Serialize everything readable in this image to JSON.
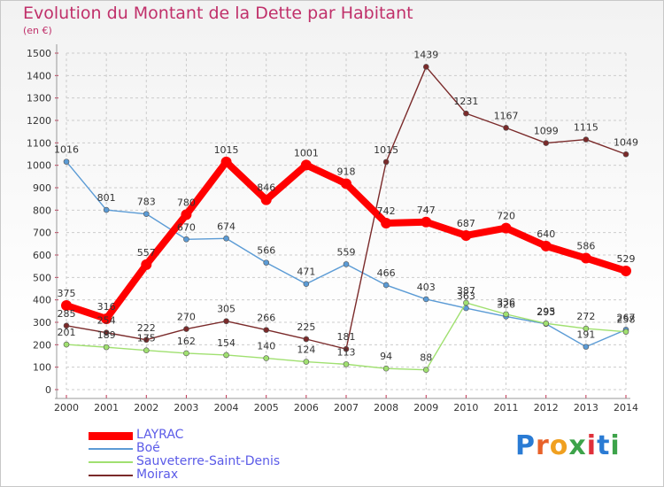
{
  "title": "Evolution du Montant de la Dette par Habitant",
  "subtitle": "(en €)",
  "logo": {
    "text": "Proxiti",
    "letters": [
      "P",
      "r",
      "o",
      "x",
      "i",
      "t",
      "i"
    ],
    "colors": [
      "#2a7bd4",
      "#e8622a",
      "#f0a020",
      "#3da34a",
      "#e0303a",
      "#2a7bd4",
      "#3da34a"
    ]
  },
  "chart_data": {
    "type": "line",
    "title": "Evolution du Montant de la Dette par Habitant",
    "subtitle": "(en €)",
    "xlabel": "",
    "ylabel": "",
    "x": [
      "2000",
      "2001",
      "2002",
      "2003",
      "2004",
      "2005",
      "2006",
      "2007",
      "2008",
      "2009",
      "2010",
      "2011",
      "2012",
      "2013",
      "2014"
    ],
    "ylim": [
      0,
      1500
    ],
    "yticks": [
      0,
      100,
      200,
      300,
      400,
      500,
      600,
      700,
      800,
      900,
      1000,
      1100,
      1200,
      1300,
      1400,
      1500
    ],
    "grid": true,
    "legend_position": "bottom-left",
    "series": [
      {
        "name": "LAYRAC",
        "color": "#ff0000",
        "values": [
          375,
          316,
          557,
          780,
          1015,
          846,
          1001,
          918,
          742,
          747,
          687,
          720,
          640,
          586,
          529
        ]
      },
      {
        "name": "Boé",
        "color": "#5b9bd5",
        "values": [
          1016,
          801,
          783,
          670,
          674,
          566,
          471,
          559,
          466,
          403,
          363,
          326,
          293,
          191,
          267
        ]
      },
      {
        "name": "Sauveterre-Saint-Denis",
        "color": "#a0e070",
        "values": [
          201,
          189,
          175,
          162,
          154,
          140,
          124,
          113,
          94,
          88,
          387,
          336,
          295,
          272,
          258
        ]
      },
      {
        "name": "Moirax",
        "color": "#7a2a2a",
        "values": [
          285,
          254,
          222,
          270,
          305,
          266,
          225,
          181,
          1015,
          1439,
          1231,
          1167,
          1099,
          1115,
          1049
        ]
      }
    ]
  }
}
